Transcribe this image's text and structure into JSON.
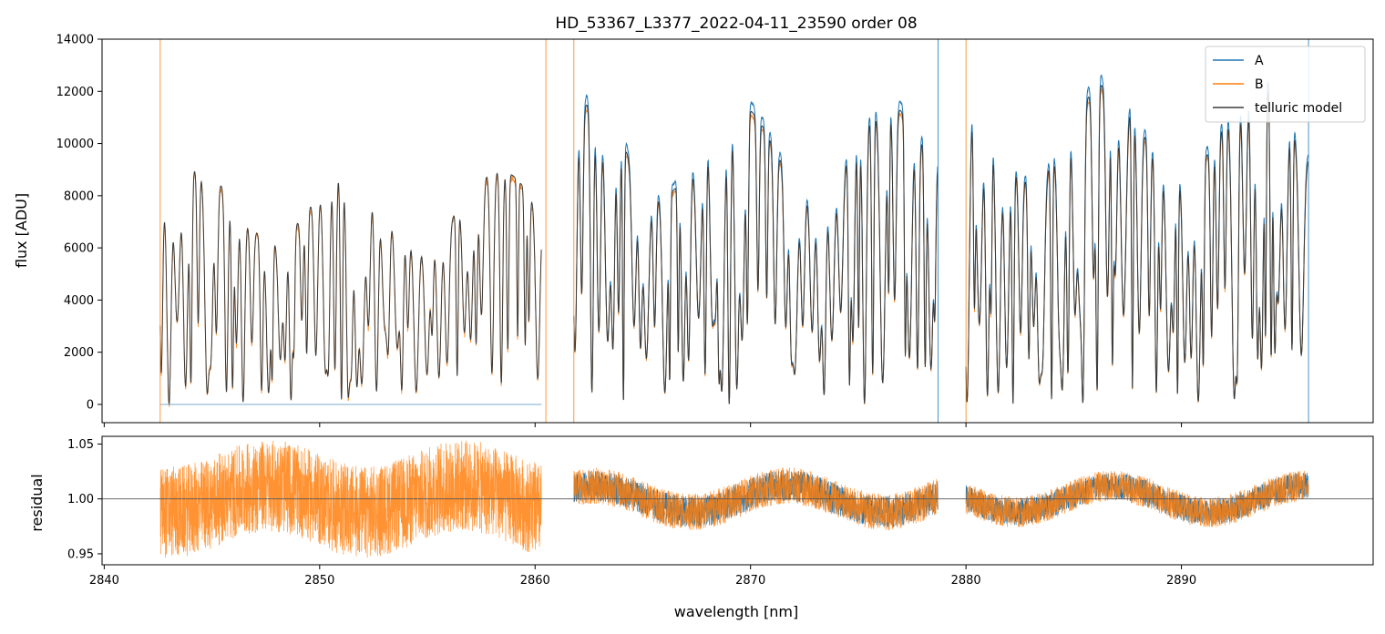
{
  "chart_data": [
    {
      "type": "line",
      "panel": "top",
      "title": "HD_53367_L3377_2022-04-11_23590  order 08",
      "xlabel": "",
      "ylabel": "flux [ADU]",
      "xlim": [
        2839.9,
        2898.9
      ],
      "ylim": [
        -700,
        14000
      ],
      "yticks": [
        0,
        2000,
        4000,
        6000,
        8000,
        10000,
        12000,
        14000
      ],
      "ytick_labels": [
        "0",
        "2000",
        "4000",
        "6000",
        "8000",
        "10000",
        "12000",
        "14000"
      ],
      "legend": {
        "position": "top-right",
        "entries": [
          "A",
          "B",
          "telluric model"
        ]
      },
      "series": [
        {
          "name": "A",
          "color": "#1f77b4"
        },
        {
          "name": "B",
          "color": "#ff7f0e"
        },
        {
          "name": "telluric model",
          "color": "#3a3a3a"
        }
      ],
      "segments": [
        {
          "x_start": 2842.6,
          "x_end": 2860.3,
          "peak": 9000,
          "detail": "lower continuum, strong absorption"
        },
        {
          "x_start": 2861.8,
          "x_end": 2878.7,
          "peak": 11500,
          "detail": "dense absorption band"
        },
        {
          "x_start": 2880.0,
          "x_end": 2895.9,
          "peak": 12300,
          "detail": "dense absorption band"
        }
      ],
      "gaps": [
        [
          2860.3,
          2861.8
        ],
        [
          2878.7,
          2880.0
        ]
      ],
      "edge_lines": [
        {
          "x": 2842.6,
          "series": "B"
        },
        {
          "x": 2860.5,
          "series": "B"
        },
        {
          "x": 2861.8,
          "series": "B"
        },
        {
          "x": 2878.7,
          "series": "A"
        },
        {
          "x": 2880.0,
          "series": "B"
        },
        {
          "x": 2895.9,
          "series": "A"
        }
      ],
      "zero_line": {
        "x_start": 2842.6,
        "x_end": 2860.3,
        "value": 0
      }
    },
    {
      "type": "line",
      "panel": "bottom",
      "title": "",
      "xlabel": "wavelength [nm]",
      "ylabel": "residual",
      "xlim": [
        2839.9,
        2898.9
      ],
      "ylim": [
        0.94,
        1.057
      ],
      "xticks": [
        2840,
        2850,
        2860,
        2870,
        2880,
        2890
      ],
      "xtick_labels": [
        "2840",
        "2850",
        "2860",
        "2870",
        "2880",
        "2890"
      ],
      "yticks": [
        0.95,
        1.0,
        1.05
      ],
      "ytick_labels": [
        "0.95",
        "1.00",
        "1.05"
      ],
      "reference_line": 1.0,
      "series": [
        {
          "name": "A",
          "color": "#1f77b4"
        },
        {
          "name": "B",
          "color": "#ff7f0e"
        }
      ],
      "noise_level": {
        "segment_1": 0.03,
        "segment_2": 0.012,
        "segment_3": 0.01
      }
    }
  ]
}
